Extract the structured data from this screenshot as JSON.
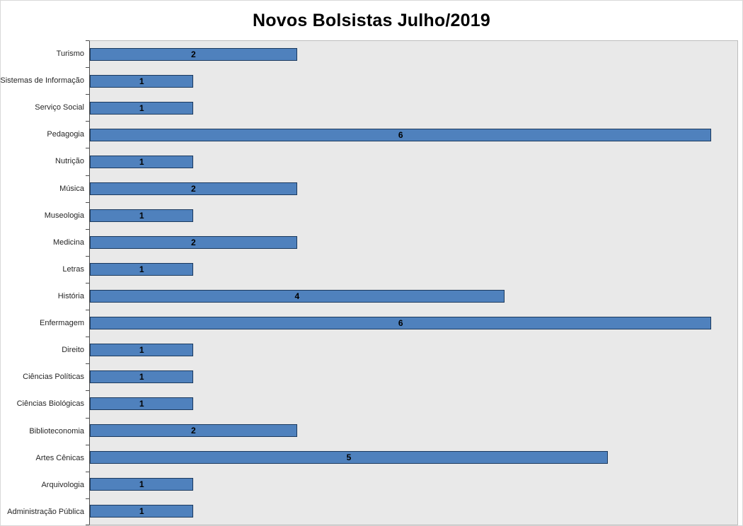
{
  "chart_data": {
    "type": "bar",
    "orientation": "horizontal",
    "title": "Novos Bolsistas Julho/2019",
    "categories": [
      "Turismo",
      "Sistemas de Informação",
      "Serviço Social",
      "Pedagogia",
      "Nutrição",
      "Música",
      "Museologia",
      "Medicina",
      "Letras",
      "História",
      "Enfermagem",
      "Direito",
      "Ciências Políticas",
      "Ciências Biológicas",
      "Biblioteconomia",
      "Artes Cênicas",
      "Arquivologia",
      "Administração Pública"
    ],
    "values": [
      2,
      1,
      1,
      6,
      1,
      2,
      1,
      2,
      1,
      4,
      6,
      1,
      1,
      1,
      2,
      5,
      1,
      1
    ],
    "data_labels": [
      "2",
      "1",
      "1",
      "6",
      "1",
      "2",
      "1",
      "2",
      "1",
      "4",
      "6",
      "1",
      "1",
      "1",
      "2",
      "5",
      "1",
      "1"
    ],
    "xlabel": "",
    "ylabel": "",
    "xlim": [
      0,
      6.25
    ],
    "grid": false,
    "legend": false,
    "categories_order": "top-to-bottom",
    "colors": {
      "bar_fill": "#4f81bd",
      "bar_border": "#1c3a5e",
      "plot_background": "#e9e9e9",
      "plot_border": "#bdbdbd",
      "axis_line": "#4d4d4d",
      "title_color": "#000000",
      "category_label_color": "#262626",
      "value_label_color": "#000000"
    }
  }
}
